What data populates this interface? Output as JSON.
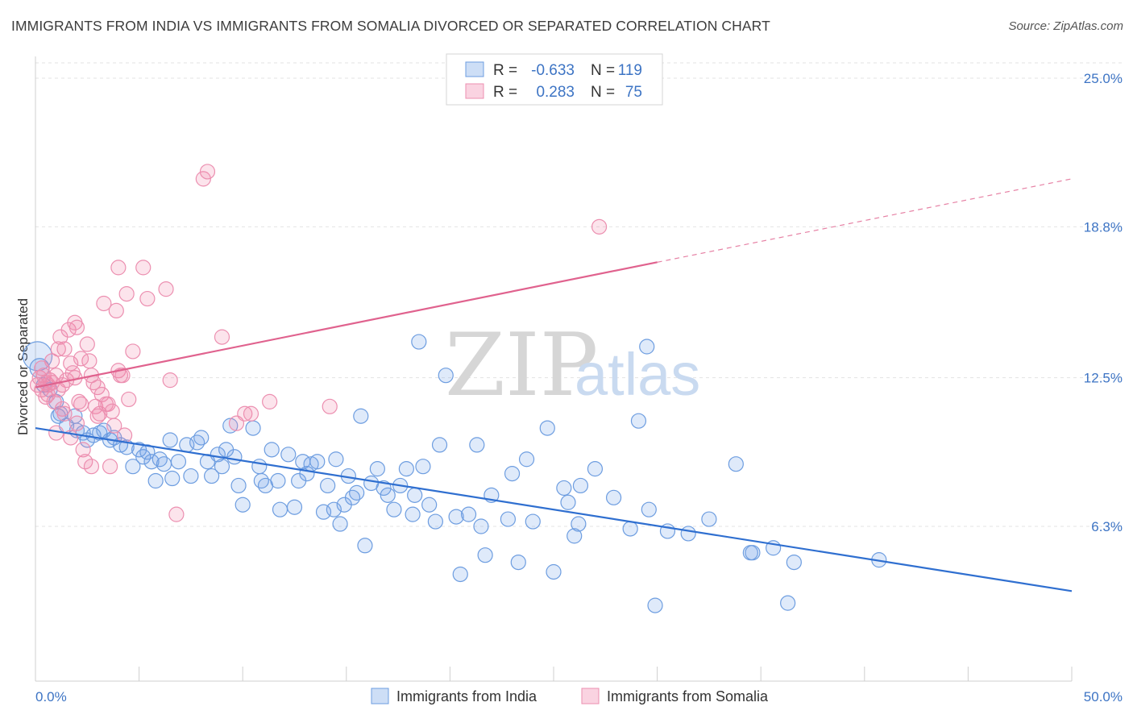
{
  "header": {
    "title": "IMMIGRANTS FROM INDIA VS IMMIGRANTS FROM SOMALIA DIVORCED OR SEPARATED CORRELATION CHART",
    "source": "Source: ZipAtlas.com"
  },
  "watermark": {
    "zip": "ZIP",
    "atlas": "atlas"
  },
  "legend": {
    "rows": [
      {
        "r_label": "R =",
        "r_value": "-0.633",
        "n_label": "N =",
        "n_value": "119"
      },
      {
        "r_label": "R =",
        "r_value": "0.283",
        "n_label": "N =",
        "n_value": "75"
      }
    ]
  },
  "bottom_legend": {
    "items": [
      "Immigrants from India",
      "Immigrants from Somalia"
    ]
  },
  "colors": {
    "india_fill": "rgba(111,160,230,0.22)",
    "india_stroke": "#6d9de0",
    "india_line": "#2f6fd0",
    "somalia_fill": "rgba(240,130,170,0.22)",
    "somalia_stroke": "#ec8fb0",
    "somalia_line": "#e0628e",
    "axis_text": "#3d74c4"
  },
  "chart_data": {
    "type": "scatter",
    "title": "IMMIGRANTS FROM INDIA VS IMMIGRANTS FROM SOMALIA DIVORCED OR SEPARATED CORRELATION CHART",
    "xlabel": "",
    "ylabel": "Divorced or Separated",
    "xlim": [
      0,
      50
    ],
    "ylim": [
      0,
      26
    ],
    "x_tick_labels": [
      "0.0%",
      "50.0%"
    ],
    "y_ticks": [
      6.3,
      12.5,
      18.8,
      25.0
    ],
    "y_tick_labels": [
      "6.3%",
      "12.5%",
      "18.8%",
      "25.0%"
    ],
    "grid": "horizontal dashed",
    "series": [
      {
        "name": "Immigrants from India",
        "r": -0.633,
        "n": 119,
        "trend": {
          "x": [
            0,
            50
          ],
          "y": [
            10.4,
            3.6
          ],
          "dashed_from": null
        },
        "points": [
          [
            0.1,
            13.4
          ],
          [
            0.2,
            12.9
          ],
          [
            0.4,
            12.2
          ],
          [
            0.7,
            12.0
          ],
          [
            1.0,
            11.5
          ],
          [
            1.1,
            10.9
          ],
          [
            1.2,
            11.0
          ],
          [
            1.5,
            10.5
          ],
          [
            1.9,
            10.9
          ],
          [
            2.0,
            10.3
          ],
          [
            2.3,
            10.2
          ],
          [
            2.5,
            9.9
          ],
          [
            2.8,
            10.1
          ],
          [
            3.1,
            10.2
          ],
          [
            3.3,
            10.3
          ],
          [
            3.6,
            9.9
          ],
          [
            3.8,
            10.0
          ],
          [
            4.1,
            9.7
          ],
          [
            4.4,
            9.6
          ],
          [
            4.7,
            8.8
          ],
          [
            5.0,
            9.5
          ],
          [
            5.2,
            9.2
          ],
          [
            5.4,
            9.4
          ],
          [
            5.6,
            9.0
          ],
          [
            5.8,
            8.2
          ],
          [
            6.0,
            9.1
          ],
          [
            6.2,
            8.9
          ],
          [
            6.5,
            9.9
          ],
          [
            6.6,
            8.3
          ],
          [
            6.9,
            9.0
          ],
          [
            7.3,
            9.7
          ],
          [
            7.5,
            8.4
          ],
          [
            7.8,
            9.8
          ],
          [
            8.0,
            10.0
          ],
          [
            8.3,
            9.0
          ],
          [
            8.5,
            8.4
          ],
          [
            8.8,
            9.3
          ],
          [
            9.0,
            8.8
          ],
          [
            9.4,
            10.5
          ],
          [
            9.6,
            9.2
          ],
          [
            9.8,
            8.0
          ],
          [
            10.0,
            7.2
          ],
          [
            10.8,
            8.8
          ],
          [
            10.5,
            10.4
          ],
          [
            10.9,
            8.2
          ],
          [
            11.1,
            8.0
          ],
          [
            11.4,
            9.5
          ],
          [
            11.7,
            8.2
          ],
          [
            11.8,
            7.0
          ],
          [
            12.2,
            9.3
          ],
          [
            12.5,
            7.1
          ],
          [
            12.7,
            8.2
          ],
          [
            12.9,
            9.0
          ],
          [
            13.1,
            8.5
          ],
          [
            13.3,
            8.9
          ],
          [
            13.6,
            9.0
          ],
          [
            13.9,
            6.9
          ],
          [
            14.1,
            8.0
          ],
          [
            14.4,
            7.0
          ],
          [
            14.7,
            6.4
          ],
          [
            14.9,
            7.2
          ],
          [
            15.1,
            8.4
          ],
          [
            15.3,
            7.5
          ],
          [
            15.5,
            7.7
          ],
          [
            15.7,
            10.9
          ],
          [
            15.9,
            5.5
          ],
          [
            16.5,
            8.7
          ],
          [
            16.8,
            7.9
          ],
          [
            17.0,
            7.6
          ],
          [
            17.3,
            7.0
          ],
          [
            17.6,
            8.0
          ],
          [
            17.9,
            8.7
          ],
          [
            18.2,
            6.8
          ],
          [
            18.3,
            7.6
          ],
          [
            18.5,
            14.0
          ],
          [
            18.7,
            8.8
          ],
          [
            19.0,
            7.2
          ],
          [
            19.3,
            6.5
          ],
          [
            19.5,
            9.7
          ],
          [
            19.8,
            12.6
          ],
          [
            20.3,
            6.7
          ],
          [
            20.5,
            4.3
          ],
          [
            20.9,
            6.8
          ],
          [
            21.3,
            9.7
          ],
          [
            21.5,
            6.3
          ],
          [
            21.7,
            5.1
          ],
          [
            22.0,
            7.6
          ],
          [
            22.8,
            6.6
          ],
          [
            23.3,
            4.8
          ],
          [
            23.7,
            9.1
          ],
          [
            24.0,
            6.5
          ],
          [
            24.7,
            10.4
          ],
          [
            25.0,
            4.4
          ],
          [
            25.5,
            7.9
          ],
          [
            25.7,
            7.3
          ],
          [
            26.0,
            5.9
          ],
          [
            26.2,
            6.4
          ],
          [
            26.3,
            8.0
          ],
          [
            27.9,
            7.5
          ],
          [
            29.1,
            10.7
          ],
          [
            28.7,
            6.2
          ],
          [
            29.6,
            7.0
          ],
          [
            29.5,
            13.8
          ],
          [
            29.9,
            3.0
          ],
          [
            30.5,
            6.1
          ],
          [
            31.5,
            6.0
          ],
          [
            32.5,
            6.6
          ],
          [
            33.8,
            8.9
          ],
          [
            34.5,
            5.2
          ],
          [
            34.6,
            5.2
          ],
          [
            35.6,
            5.4
          ],
          [
            36.3,
            3.1
          ],
          [
            36.6,
            4.8
          ],
          [
            40.7,
            4.9
          ],
          [
            14.5,
            9.1
          ],
          [
            23.0,
            8.5
          ],
          [
            27.0,
            8.7
          ],
          [
            9.2,
            9.5
          ],
          [
            16.2,
            8.1
          ]
        ]
      },
      {
        "name": "Immigrants from Somalia",
        "r": 0.283,
        "n": 75,
        "trend": {
          "x": [
            0,
            50
          ],
          "y": [
            12.1,
            20.8
          ],
          "solid_until_x": 30.0
        },
        "points": [
          [
            0.1,
            12.2
          ],
          [
            0.2,
            12.5
          ],
          [
            0.3,
            12.0
          ],
          [
            0.4,
            12.6
          ],
          [
            0.5,
            12.3
          ],
          [
            0.6,
            12.2
          ],
          [
            0.7,
            12.4
          ],
          [
            0.8,
            13.2
          ],
          [
            0.9,
            11.5
          ],
          [
            1.0,
            12.6
          ],
          [
            1.1,
            13.7
          ],
          [
            1.2,
            14.2
          ],
          [
            1.3,
            11.2
          ],
          [
            1.4,
            13.7
          ],
          [
            1.5,
            12.4
          ],
          [
            1.6,
            14.5
          ],
          [
            1.7,
            13.1
          ],
          [
            1.8,
            12.7
          ],
          [
            1.9,
            14.8
          ],
          [
            2.0,
            14.6
          ],
          [
            2.1,
            11.5
          ],
          [
            2.2,
            11.4
          ],
          [
            2.3,
            9.5
          ],
          [
            2.4,
            9.0
          ],
          [
            2.5,
            13.9
          ],
          [
            2.6,
            13.2
          ],
          [
            2.7,
            8.8
          ],
          [
            2.8,
            12.3
          ],
          [
            2.9,
            11.3
          ],
          [
            3.0,
            12.1
          ],
          [
            3.1,
            11.0
          ],
          [
            3.2,
            11.8
          ],
          [
            3.3,
            15.6
          ],
          [
            3.4,
            11.4
          ],
          [
            3.5,
            11.4
          ],
          [
            3.6,
            8.8
          ],
          [
            3.7,
            11.1
          ],
          [
            3.8,
            10.5
          ],
          [
            3.9,
            15.3
          ],
          [
            4.0,
            12.8
          ],
          [
            4.1,
            12.6
          ],
          [
            4.2,
            12.6
          ],
          [
            4.3,
            10.1
          ],
          [
            4.4,
            16.0
          ],
          [
            4.5,
            11.6
          ],
          [
            4.7,
            13.6
          ],
          [
            4.0,
            17.1
          ],
          [
            5.2,
            17.1
          ],
          [
            5.4,
            15.8
          ],
          [
            6.3,
            16.2
          ],
          [
            6.5,
            12.4
          ],
          [
            6.8,
            6.8
          ],
          [
            8.1,
            20.8
          ],
          [
            8.3,
            21.1
          ],
          [
            9.0,
            14.2
          ],
          [
            9.7,
            10.6
          ],
          [
            10.1,
            11.0
          ],
          [
            10.4,
            11.0
          ],
          [
            11.3,
            11.5
          ],
          [
            14.2,
            11.3
          ],
          [
            27.2,
            18.8
          ],
          [
            1.0,
            10.2
          ],
          [
            1.7,
            10.0
          ],
          [
            2.0,
            10.6
          ],
          [
            0.5,
            11.7
          ],
          [
            0.8,
            12.3
          ],
          [
            1.1,
            12.0
          ],
          [
            1.4,
            11.0
          ],
          [
            2.2,
            13.3
          ],
          [
            2.7,
            12.6
          ],
          [
            3.0,
            10.9
          ],
          [
            0.3,
            12.9
          ],
          [
            0.6,
            11.8
          ],
          [
            1.9,
            12.5
          ],
          [
            1.3,
            12.2
          ]
        ]
      }
    ]
  }
}
